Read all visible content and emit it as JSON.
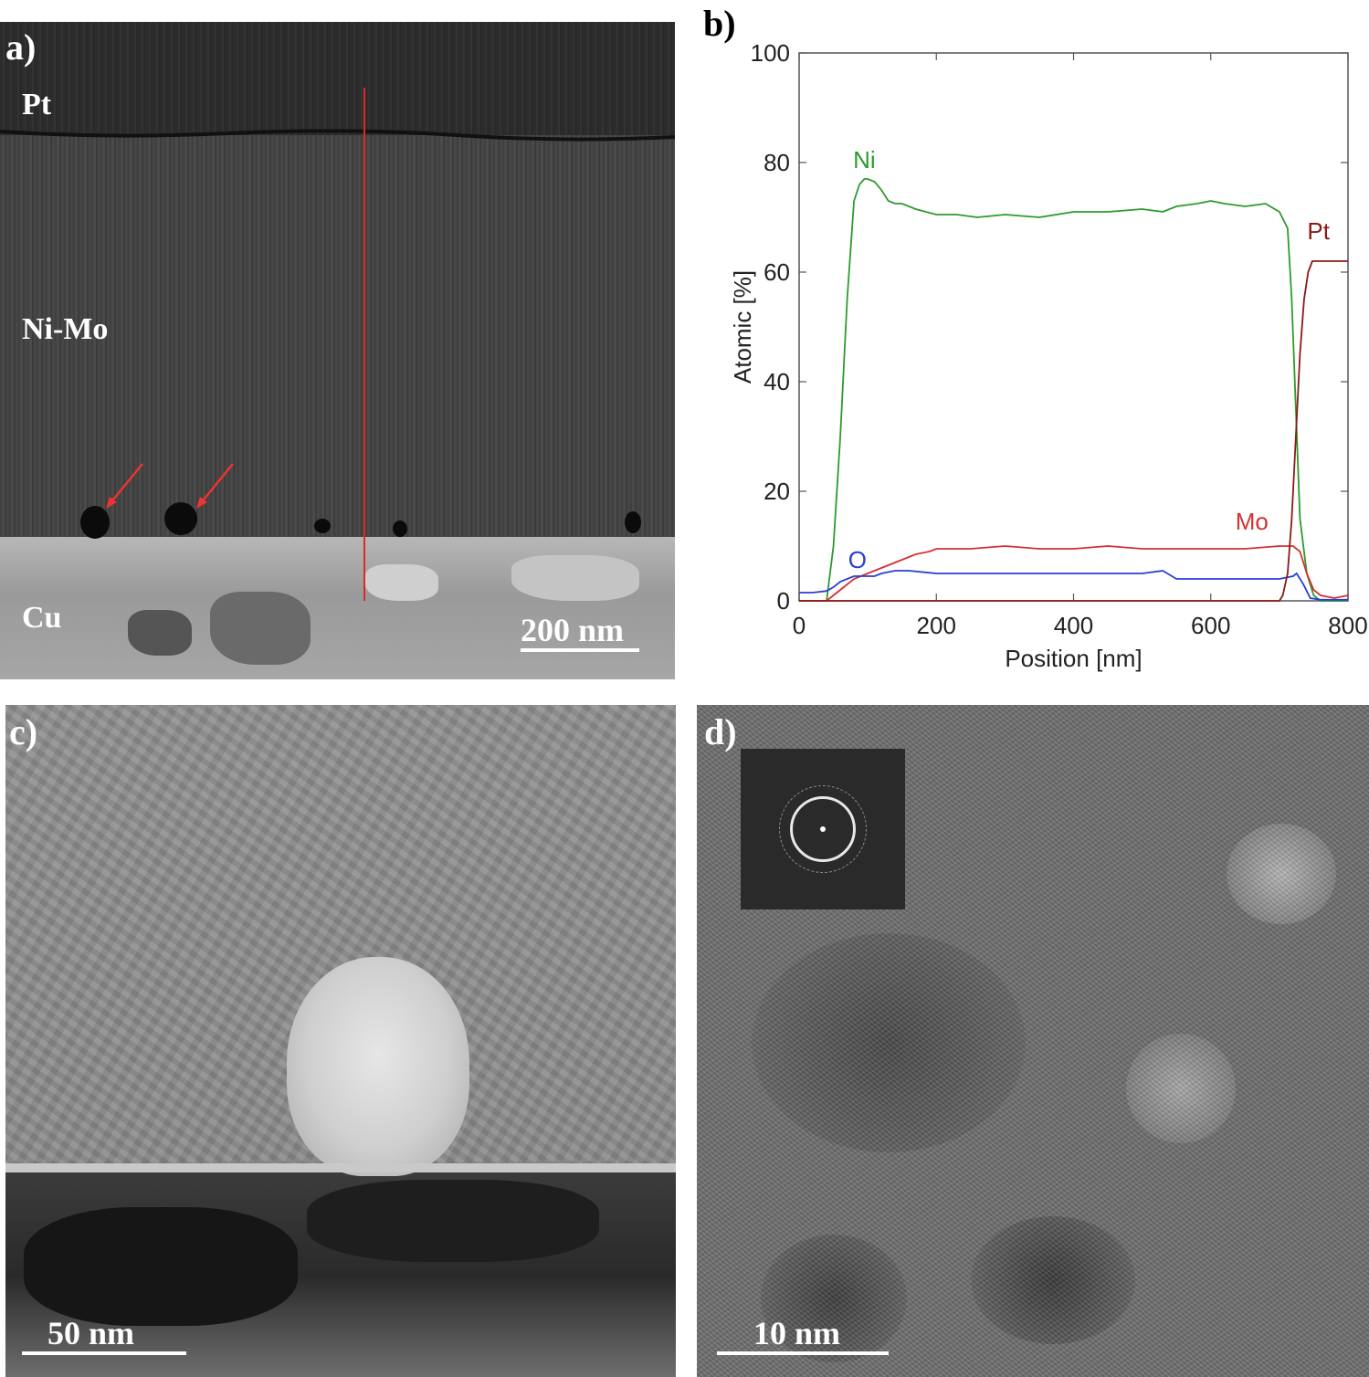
{
  "panels": {
    "a": {
      "label": "a)",
      "layers": [
        "Pt",
        "Ni-Mo",
        "Cu"
      ],
      "scalebar": "200 nm"
    },
    "b": {
      "label": "b)"
    },
    "c": {
      "label": "c)",
      "scalebar": "50 nm"
    },
    "d": {
      "label": "d)",
      "scalebar": "10 nm"
    }
  },
  "chart_data": {
    "type": "line",
    "xlabel": "Position [nm]",
    "ylabel": "Atomic [%]",
    "xlim": [
      0,
      800
    ],
    "ylim": [
      0,
      100
    ],
    "xticks": [
      0,
      200,
      400,
      600,
      800
    ],
    "yticks": [
      0,
      20,
      40,
      60,
      80,
      100
    ],
    "series": [
      {
        "name": "Ni",
        "color": "#2e9a2e",
        "x": [
          0,
          40,
          50,
          60,
          70,
          80,
          88,
          95,
          100,
          110,
          120,
          130,
          140,
          150,
          170,
          200,
          230,
          260,
          300,
          350,
          400,
          450,
          500,
          530,
          550,
          580,
          600,
          620,
          650,
          680,
          700,
          712,
          718,
          724,
          730,
          740,
          750,
          760,
          770,
          780,
          800
        ],
        "y": [
          0,
          0,
          10,
          30,
          55,
          73,
          76,
          77,
          77,
          76.5,
          75,
          73,
          72.5,
          72.5,
          71.5,
          70.5,
          70.5,
          70,
          70.5,
          70,
          71,
          71,
          71.5,
          71,
          72,
          72.5,
          73,
          72.5,
          72,
          72.5,
          71,
          68,
          55,
          35,
          15,
          5,
          1,
          0,
          0,
          0,
          0
        ]
      },
      {
        "name": "Mo",
        "color": "#d63030",
        "x": [
          0,
          40,
          50,
          60,
          70,
          80,
          90,
          100,
          110,
          120,
          130,
          150,
          170,
          190,
          200,
          220,
          250,
          300,
          350,
          400,
          450,
          500,
          550,
          600,
          650,
          700,
          720,
          730,
          740,
          750,
          760,
          780,
          800
        ],
        "y": [
          0,
          0,
          1,
          2,
          3,
          4,
          4.5,
          5,
          5.5,
          6,
          6.5,
          7.5,
          8.5,
          9,
          9.5,
          9.5,
          9.5,
          10,
          9.5,
          9.5,
          10,
          9.5,
          9.5,
          9.5,
          9.5,
          10,
          10,
          9,
          5,
          2,
          1,
          0.5,
          1
        ]
      },
      {
        "name": "O",
        "color": "#2a3ed6",
        "x": [
          0,
          20,
          40,
          50,
          60,
          70,
          80,
          90,
          100,
          110,
          120,
          140,
          160,
          200,
          250,
          300,
          350,
          400,
          450,
          500,
          530,
          550,
          600,
          650,
          700,
          720,
          725,
          735,
          745,
          760,
          780,
          800
        ],
        "y": [
          1.5,
          1.5,
          1.8,
          2.5,
          3.5,
          4,
          4.5,
          4.5,
          4.5,
          4.5,
          5,
          5.5,
          5.5,
          5,
          5,
          5,
          5,
          5,
          5,
          5,
          5.5,
          4,
          4,
          4,
          4,
          4.5,
          5,
          3,
          0.5,
          0.2,
          0.2,
          0.2
        ]
      },
      {
        "name": "Pt",
        "color": "#8a1a1a",
        "x": [
          0,
          50,
          100,
          200,
          400,
          600,
          700,
          705,
          712,
          718,
          724,
          730,
          736,
          742,
          748,
          760,
          780,
          800
        ],
        "y": [
          0,
          0,
          0,
          0,
          0,
          0,
          0,
          1,
          5,
          15,
          30,
          45,
          55,
          60,
          62,
          62,
          62,
          62
        ]
      }
    ],
    "series_labels": [
      "Ni",
      "Mo",
      "O",
      "Pt"
    ],
    "grid": false
  }
}
